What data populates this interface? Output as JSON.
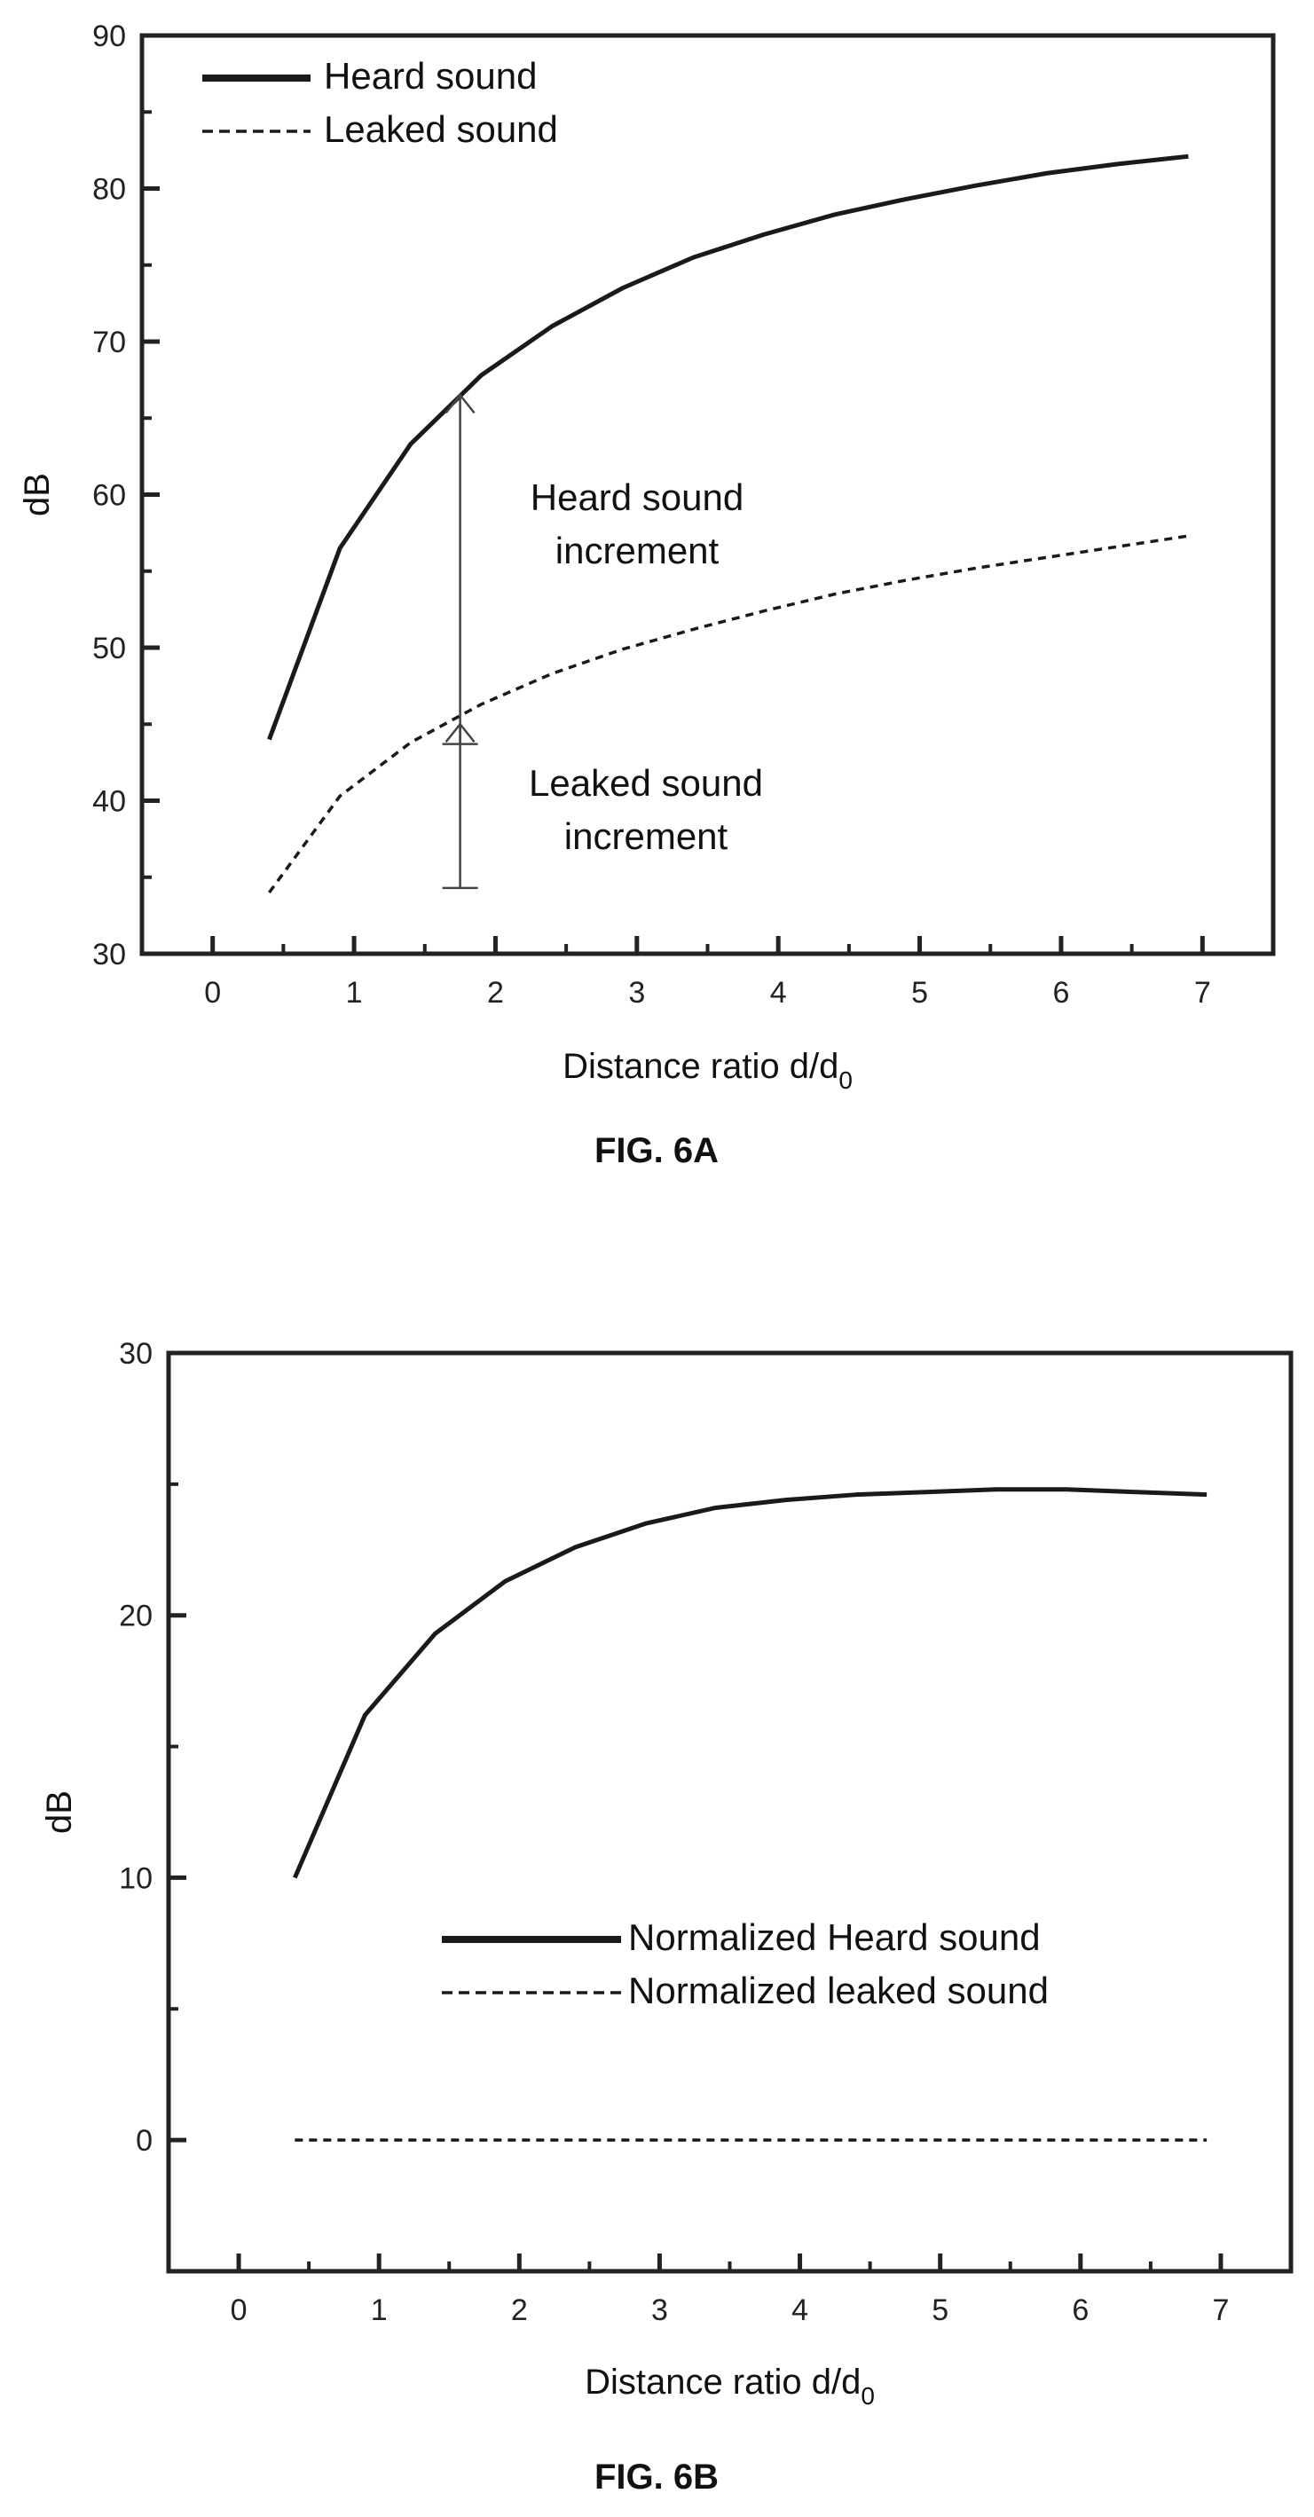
{
  "chart_data": [
    {
      "type": "line",
      "caption": "FIG. 6A",
      "xlabel": "Distance ratio d/d",
      "xlabel_subscript": "0",
      "ylabel": "dB",
      "xlim": [
        -0.5,
        7.5
      ],
      "ylim": [
        30,
        90
      ],
      "xticks": [
        0,
        1,
        2,
        3,
        4,
        5,
        6,
        7
      ],
      "yticks": [
        30,
        40,
        50,
        60,
        70,
        80,
        90
      ],
      "legend_position": "top-left",
      "series": [
        {
          "name": "Heard sound",
          "style": "solid",
          "x": [
            0.4,
            0.9,
            1.4,
            1.9,
            2.4,
            2.9,
            3.4,
            3.9,
            4.4,
            4.9,
            5.4,
            5.9,
            6.4,
            6.9
          ],
          "y": [
            44,
            56.5,
            63.3,
            67.8,
            71.0,
            73.5,
            75.5,
            77.0,
            78.3,
            79.3,
            80.2,
            81.0,
            81.6,
            82.1
          ]
        },
        {
          "name": "Leaked sound",
          "style": "dashed",
          "x": [
            0.4,
            0.9,
            1.4,
            1.9,
            2.4,
            2.9,
            3.4,
            3.9,
            4.4,
            4.9,
            5.4,
            5.9,
            6.4,
            6.9
          ],
          "y": [
            34,
            40.3,
            43.8,
            46.3,
            48.3,
            49.9,
            51.2,
            52.4,
            53.5,
            54.4,
            55.2,
            55.9,
            56.6,
            57.3
          ]
        }
      ],
      "annotations": [
        {
          "lines": [
            "Heard sound",
            "increment"
          ],
          "arrow_x": 1.75,
          "arrow_from": 43.7,
          "arrow_to": 66.5
        },
        {
          "lines": [
            "Leaked sound",
            "increment"
          ],
          "arrow_x": 1.75,
          "arrow_from": 34.3,
          "arrow_to": 45.0
        }
      ]
    },
    {
      "type": "line",
      "caption": "FIG. 6B",
      "xlabel": "Distance ratio d/d",
      "xlabel_subscript": "0",
      "ylabel": "dB",
      "xlim": [
        -0.5,
        7.5
      ],
      "ylim": [
        -5,
        30
      ],
      "xticks": [
        0,
        1,
        2,
        3,
        4,
        5,
        6,
        7
      ],
      "yticks": [
        0,
        10,
        20,
        30
      ],
      "legend_position": "center",
      "series": [
        {
          "name": "Normalized Heard sound",
          "style": "solid",
          "x": [
            0.4,
            0.9,
            1.4,
            1.9,
            2.4,
            2.9,
            3.4,
            3.9,
            4.4,
            4.9,
            5.4,
            5.9,
            6.4,
            6.9
          ],
          "y": [
            10,
            16.2,
            19.3,
            21.3,
            22.6,
            23.5,
            24.1,
            24.4,
            24.6,
            24.7,
            24.8,
            24.8,
            24.7,
            24.6
          ]
        },
        {
          "name": "Normalized leaked sound",
          "style": "dashed",
          "x": [
            0.4,
            0.9,
            1.4,
            1.9,
            2.4,
            2.9,
            3.4,
            3.9,
            4.4,
            4.9,
            5.4,
            5.9,
            6.4,
            6.9
          ],
          "y": [
            0,
            0,
            0,
            0,
            0,
            0,
            0,
            0,
            0,
            0,
            0,
            0,
            0,
            0
          ]
        }
      ],
      "annotations": []
    }
  ]
}
